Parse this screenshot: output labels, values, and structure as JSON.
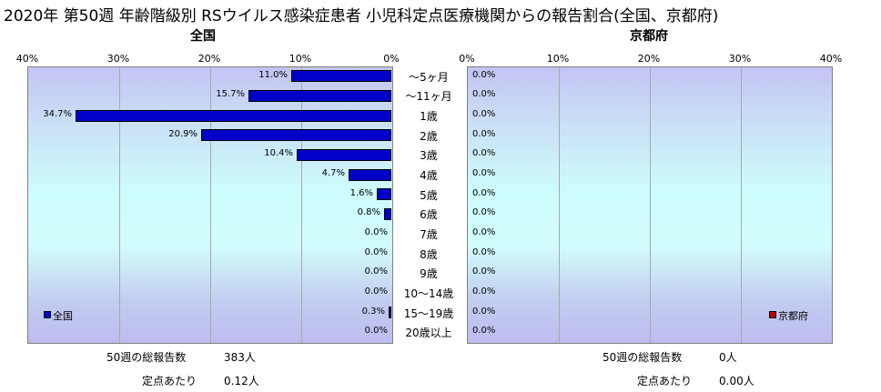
{
  "title": "2020年 第50週 年齢階級別 RSウイルス感染症患者 小児科定点医療機関からの報告割合(全国、京都府)",
  "chart_data": {
    "type": "bar",
    "orientation": "horizontal",
    "categories": [
      "～5ヶ月",
      "～11ヶ月",
      "1歳",
      "2歳",
      "3歳",
      "4歳",
      "5歳",
      "6歳",
      "7歳",
      "8歳",
      "9歳",
      "10～14歳",
      "15～19歳",
      "20歳以上"
    ],
    "xlim": [
      0,
      40
    ],
    "ticks": [
      "40%",
      "30%",
      "20%",
      "10%",
      "0%"
    ],
    "ticks_right": [
      "0%",
      "10%",
      "20%",
      "30%",
      "40%"
    ],
    "grid": true,
    "panels": [
      {
        "subtitle": "全国",
        "direction": "reversed",
        "series": [
          {
            "name": "全国",
            "color": "#0000c8",
            "values": [
              11.0,
              15.7,
              34.7,
              20.9,
              10.4,
              4.7,
              1.6,
              0.8,
              0.0,
              0.0,
              0.0,
              0.0,
              0.3,
              0.0
            ],
            "labels": [
              "11.0%",
              "15.7%",
              "34.7%",
              "20.9%",
              "10.4%",
              "4.7%",
              "1.6%",
              "0.8%",
              "0.0%",
              "0.0%",
              "0.0%",
              "0.0%",
              "0.3%",
              "0.0%"
            ]
          }
        ],
        "legend_position": "bottom-left"
      },
      {
        "subtitle": "京都府",
        "direction": "normal",
        "series": [
          {
            "name": "京都府",
            "color": "#c00000",
            "values": [
              0,
              0,
              0,
              0,
              0,
              0,
              0,
              0,
              0,
              0,
              0,
              0,
              0,
              0
            ],
            "labels": [
              "0.0%",
              "0.0%",
              "0.0%",
              "0.0%",
              "0.0%",
              "0.0%",
              "0.0%",
              "0.0%",
              "0.0%",
              "0.0%",
              "0.0%",
              "0.0%",
              "0.0%",
              "0.0%"
            ]
          }
        ],
        "legend_position": "bottom-right"
      }
    ]
  },
  "footer": {
    "left": {
      "total_label": "50週の総報告数",
      "total_value": "383人",
      "per_label": "定点あたり",
      "per_value": "0.12人"
    },
    "right": {
      "total_label": "50週の総報告数",
      "total_value": "0人",
      "per_label": "定点あたり",
      "per_value": "0.00人"
    }
  }
}
